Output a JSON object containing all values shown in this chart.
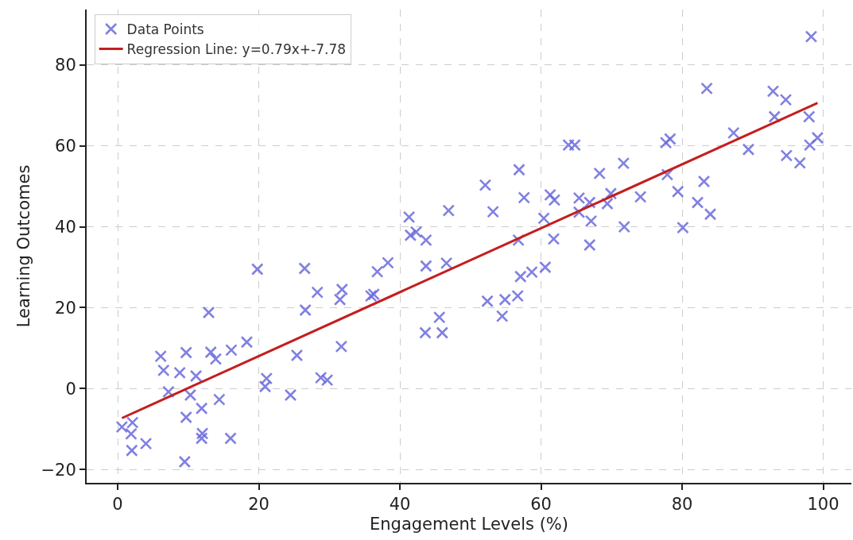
{
  "chart_data": {
    "type": "scatter",
    "xlabel": "Engagement Levels (%)",
    "ylabel": "Learning Outcomes",
    "xlim": [
      -4.4,
      104
    ],
    "ylim": [
      -23.3,
      93.7
    ],
    "xticks": [
      0,
      20,
      40,
      60,
      80,
      100
    ],
    "yticks": [
      {
        "value": -20,
        "label": "−20"
      },
      0,
      20,
      40,
      60,
      80
    ],
    "grid": true,
    "legend": "top left",
    "series": [
      {
        "name": "Data Points",
        "marker": "cross",
        "color": "#6b6bdc",
        "x": [
          0.6,
          2.1,
          1.9,
          2.0,
          4.0,
          6.1,
          6.5,
          7.2,
          8.8,
          9.7,
          9.7,
          9.5,
          10.3,
          11.1,
          11.9,
          12.0,
          11.9,
          12.9,
          13.2,
          13.9,
          14.4,
          16.0,
          16.1,
          18.3,
          19.8,
          21.1,
          20.9,
          24.5,
          25.4,
          26.5,
          26.6,
          28.3,
          28.8,
          29.7,
          31.5,
          31.8,
          31.7,
          35.9,
          36.3,
          36.8,
          38.3,
          43.7,
          43.6,
          45.6,
          46.0,
          41.3,
          41.5,
          42.3,
          43.7,
          46.6,
          46.9,
          52.4,
          54.9,
          56.7,
          54.5,
          57.1,
          58.7,
          60.6,
          52.1,
          53.2,
          56.9,
          56.8,
          57.6,
          60.4,
          61.3,
          61.9,
          61.8,
          63.9,
          64.8,
          65.4,
          65.4,
          66.9,
          67.1,
          66.9,
          68.3,
          69.4,
          69.9,
          71.7,
          71.8,
          74.1,
          77.7,
          78.3,
          77.9,
          79.4,
          80.1,
          82.2,
          83.1,
          83.5,
          84.0,
          87.3,
          89.4,
          92.9,
          93.1,
          94.7,
          94.8,
          96.7,
          98.0,
          98.1,
          98.3,
          99.2
        ],
        "values": [
          -9.5,
          -8.4,
          -11.2,
          -15.3,
          -13.6,
          8.0,
          4.5,
          -0.8,
          3.9,
          8.9,
          -7.1,
          -18.1,
          -1.6,
          3.1,
          -4.9,
          -11.1,
          -12.3,
          18.8,
          9.0,
          7.3,
          -2.7,
          -12.3,
          9.5,
          11.5,
          29.5,
          2.5,
          0.5,
          -1.6,
          8.2,
          29.7,
          19.4,
          23.8,
          2.7,
          2.1,
          22.0,
          24.5,
          10.4,
          22.9,
          23.3,
          28.9,
          31.1,
          30.3,
          13.8,
          17.6,
          13.8,
          42.4,
          37.9,
          38.7,
          36.7,
          31.0,
          44.0,
          21.6,
          22.0,
          22.9,
          17.9,
          27.7,
          28.8,
          30.0,
          50.3,
          43.7,
          54.1,
          36.7,
          47.2,
          42.1,
          47.9,
          46.6,
          37.0,
          60.2,
          60.2,
          47.1,
          43.6,
          46.0,
          41.4,
          35.5,
          53.2,
          45.7,
          48.2,
          55.7,
          40.0,
          47.4,
          60.8,
          61.7,
          52.9,
          48.7,
          39.8,
          46.0,
          51.2,
          74.2,
          43.1,
          63.2,
          59.1,
          73.5,
          67.2,
          71.4,
          57.6,
          55.8,
          67.2,
          60.2,
          87.0,
          62.0
        ]
      },
      {
        "name": "Regression Line: y=0.79x+-7.78",
        "type": "line",
        "line_style": "solid",
        "color": "#c41e1e",
        "x": [
          0.6,
          99.2
        ],
        "values": [
          -7.3,
          70.6
        ]
      }
    ]
  }
}
